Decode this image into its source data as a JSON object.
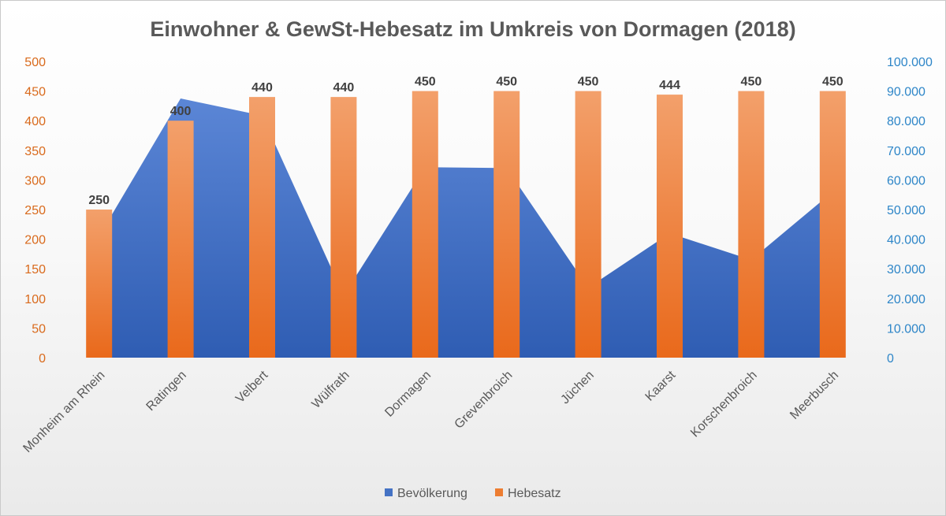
{
  "chart_data": {
    "type": "bar",
    "title": "Einwohner & GewSt-Hebesatz im Umkreis von Dormagen (2018)",
    "categories": [
      "Monheim am Rhein",
      "Ratingen",
      "Velbert",
      "Wülfrath",
      "Dormagen",
      "Grevenbroich",
      "Jüchen",
      "Kaarst",
      "Korschenbroich",
      "Meerbusch"
    ],
    "series": [
      {
        "name": "Bevölkerung",
        "type": "area",
        "axis": "right",
        "color": "#4472c4",
        "values": [
          41000,
          87500,
          81700,
          21000,
          64300,
          64000,
          23600,
          42000,
          33000,
          56000
        ]
      },
      {
        "name": "Hebesatz",
        "type": "bar",
        "axis": "left",
        "color": "#ed7d31",
        "values": [
          250,
          400,
          440,
          440,
          450,
          450,
          450,
          444,
          450,
          450
        ]
      }
    ],
    "ylim_left": [
      0,
      500
    ],
    "yticks_left": [
      "0",
      "50",
      "100",
      "150",
      "200",
      "250",
      "300",
      "350",
      "400",
      "450",
      "500"
    ],
    "ylim_right": [
      0,
      100000
    ],
    "yticks_right": [
      "0",
      "10.000",
      "20.000",
      "30.000",
      "40.000",
      "50.000",
      "60.000",
      "70.000",
      "80.000",
      "90.000",
      "100.000"
    ],
    "legend_position": "bottom",
    "grid": false
  }
}
